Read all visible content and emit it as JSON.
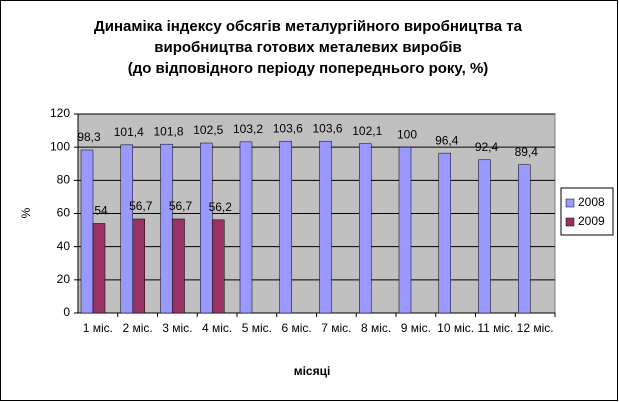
{
  "chart_data": {
    "type": "bar",
    "title": [
      "Динаміка індексу обсягів металургійного виробництва та",
      "виробництва готових металевих виробів",
      "(до відповідного періоду попереднього року, %)"
    ],
    "x_label": "місяці",
    "y_label": "%",
    "categories": [
      "1 міс.",
      "2 міс.",
      "3 міс.",
      "4 міс.",
      "5 міс.",
      "6 міс.",
      "7 міс.",
      "8 міс.",
      "9 міс.",
      "10 міс.",
      "11 міс.",
      "12 міс."
    ],
    "series": [
      {
        "name": "2008",
        "color": "#9999ff",
        "values": [
          98.3,
          101.4,
          101.8,
          102.5,
          103.2,
          103.6,
          103.6,
          102.1,
          100,
          96.4,
          92.4,
          89.4
        ],
        "value_labels": [
          "98,3",
          "101,4",
          "101,8",
          "102,5",
          "103,2",
          "103,6",
          "103,6",
          "102,1",
          "100",
          "96,4",
          "92,4",
          "89,4"
        ]
      },
      {
        "name": "2009",
        "color": "#993366",
        "values": [
          54,
          56.7,
          56.7,
          56.2,
          null,
          null,
          null,
          null,
          null,
          null,
          null,
          null
        ],
        "value_labels": [
          "54",
          "56,7",
          "56,7",
          "56,2",
          null,
          null,
          null,
          null,
          null,
          null,
          null,
          null
        ]
      }
    ],
    "ylim": [
      0,
      120
    ],
    "yticks": [
      0,
      20,
      40,
      60,
      80,
      100,
      120
    ],
    "grid": true,
    "legend": "right",
    "plot_background": "#c0c0c0"
  }
}
